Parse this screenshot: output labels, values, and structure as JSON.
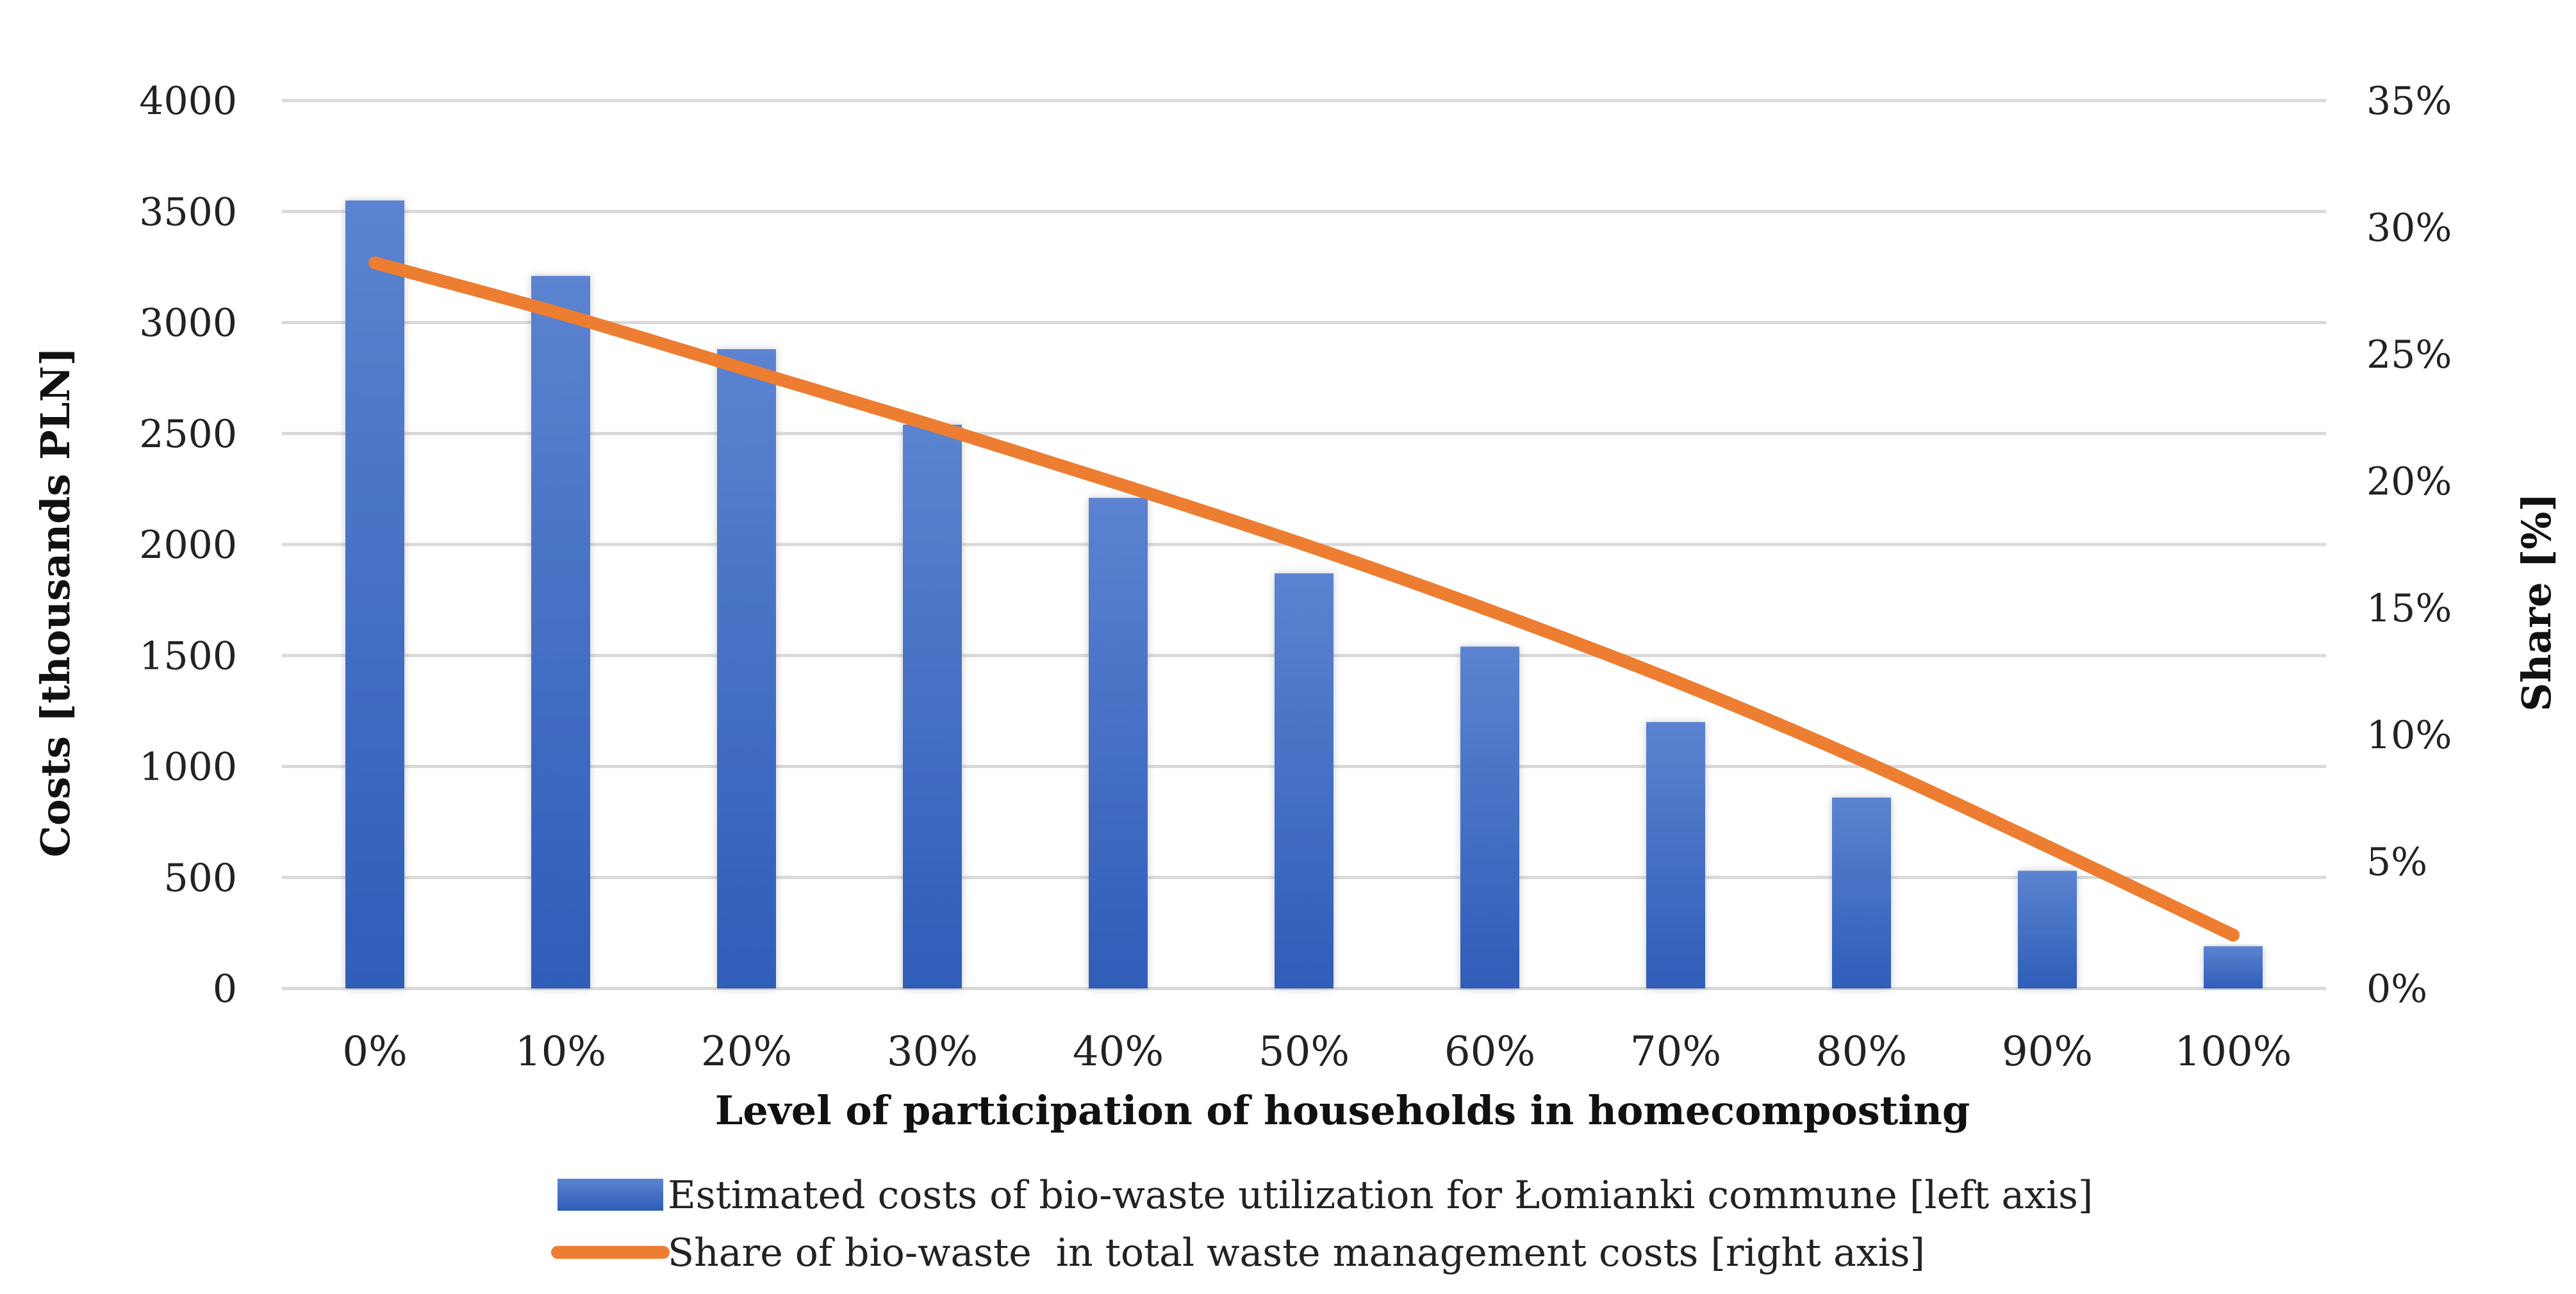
{
  "chart_data": {
    "type": "bar",
    "categories": [
      "0%",
      "10%",
      "20%",
      "30%",
      "40%",
      "50%",
      "60%",
      "70%",
      "80%",
      "90%",
      "100%"
    ],
    "xlabel": "Level of participation of households in homecomposting",
    "ylabel": "Costs [thousands PLN]",
    "y2label": "Share [%]",
    "ylim": [
      0,
      4000
    ],
    "yticks": [
      0,
      500,
      1000,
      1500,
      2000,
      2500,
      3000,
      3500,
      4000
    ],
    "y2lim": [
      0,
      35
    ],
    "y2ticks": [
      0,
      5,
      10,
      15,
      20,
      25,
      30,
      35
    ],
    "y2tick_labels": [
      "0%",
      "5%",
      "10%",
      "15%",
      "20%",
      "25%",
      "30%",
      "35%"
    ],
    "grid": true,
    "legend_position": "bottom",
    "series": [
      {
        "name": "Estimated costs of bio-waste utilization for Łomianki commune [left axis]",
        "type": "bar",
        "axis": "left",
        "color": "#4472C4",
        "values": [
          3550,
          3210,
          2880,
          2540,
          2210,
          1870,
          1540,
          1200,
          860,
          530,
          190
        ]
      },
      {
        "name": "Share of bio-waste  in total waste management costs [right axis]",
        "type": "line",
        "axis": "right",
        "color": "#ED7D31",
        "values": [
          28.6,
          26.6,
          24.4,
          22.2,
          19.9,
          17.5,
          14.9,
          12.1,
          9.0,
          5.6,
          2.1
        ]
      }
    ]
  }
}
